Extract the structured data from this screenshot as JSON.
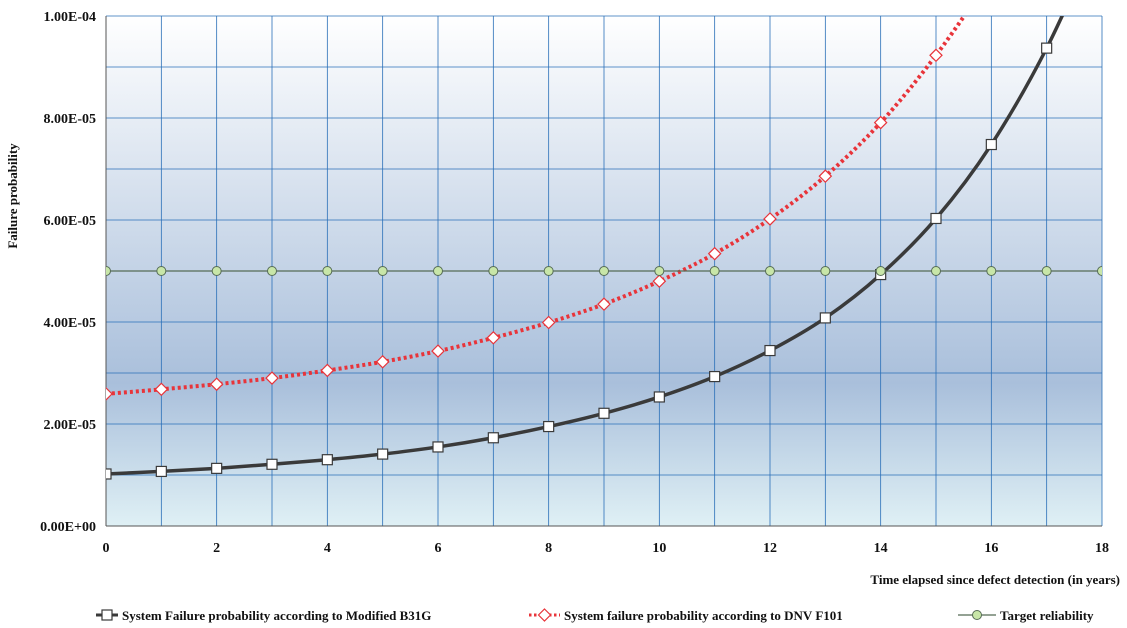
{
  "chart_data": {
    "type": "line",
    "title": "",
    "xlabel": "Time elapsed since  defect detection  (in years)",
    "ylabel": "Failure  probability",
    "xlim": [
      0,
      18
    ],
    "ylim": [
      0,
      0.0001
    ],
    "x_ticks": [
      0,
      2,
      4,
      6,
      8,
      10,
      12,
      14,
      16,
      18
    ],
    "x_tick_labels": [
      "0",
      "2",
      "4",
      "6",
      "8",
      "10",
      "12",
      "14",
      "16",
      "18"
    ],
    "y_ticks": [
      0,
      2e-05,
      4e-05,
      6e-05,
      8e-05,
      0.0001
    ],
    "y_tick_labels": [
      "0.00E+00",
      "2.00E-05",
      "4.00E-05",
      "6.00E-05",
      "8.00E-05",
      "1.00E-04"
    ],
    "grid": true,
    "legend_position": "bottom-right",
    "series": [
      {
        "name": "System Failure probability according to Modified B31G",
        "color": "#3a3a3a",
        "marker": "square",
        "line_style": "solid",
        "x": [
          0,
          1,
          2,
          3,
          4,
          5,
          6,
          7,
          8,
          9,
          10,
          11,
          12,
          13,
          14,
          15,
          16,
          17
        ],
        "values": [
          1.02e-05,
          1.07e-05,
          1.13e-05,
          1.21e-05,
          1.3e-05,
          1.41e-05,
          1.55e-05,
          1.73e-05,
          1.95e-05,
          2.21e-05,
          2.53e-05,
          2.93e-05,
          3.44e-05,
          4.08e-05,
          4.93e-05,
          6.03e-05,
          7.48e-05,
          9.37e-05
        ]
      },
      {
        "name": "System failure probability according to DNV F101",
        "color": "#e8343a",
        "marker": "diamond",
        "line_style": "dotted",
        "x": [
          0,
          1,
          2,
          3,
          4,
          5,
          6,
          7,
          8,
          9,
          10,
          11,
          12,
          13,
          14,
          15
        ],
        "values": [
          2.59e-05,
          2.68e-05,
          2.78e-05,
          2.9e-05,
          3.05e-05,
          3.22e-05,
          3.43e-05,
          3.69e-05,
          3.99e-05,
          4.35e-05,
          4.8e-05,
          5.34e-05,
          6.02e-05,
          6.86e-05,
          7.91e-05,
          9.23e-05
        ]
      },
      {
        "name": "Target reliability",
        "color": "#556b55",
        "marker": "circle",
        "marker_fill": "#c8e6a8",
        "line_style": "solid",
        "x": [
          0,
          1,
          2,
          3,
          4,
          5,
          6,
          7,
          8,
          9,
          10,
          11,
          12,
          13,
          14,
          15,
          16,
          17,
          18
        ],
        "values": [
          5e-05,
          5e-05,
          5e-05,
          5e-05,
          5e-05,
          5e-05,
          5e-05,
          5e-05,
          5e-05,
          5e-05,
          5e-05,
          5e-05,
          5e-05,
          5e-05,
          5e-05,
          5e-05,
          5e-05,
          5e-05,
          5e-05
        ]
      }
    ],
    "plot_background": {
      "top": "#ffffff",
      "middle": "#a9bfdb",
      "bottom": "#dff0f5"
    },
    "grid_color": "#2a6fb8"
  }
}
